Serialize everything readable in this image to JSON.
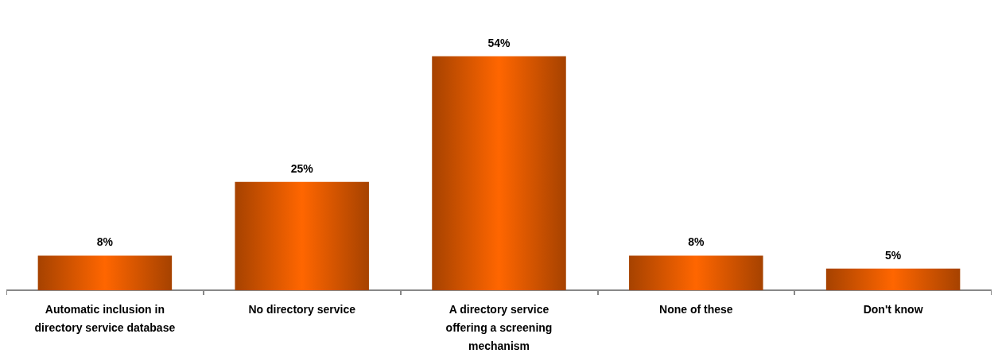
{
  "chart_data": {
    "type": "bar",
    "categories": [
      "Automatic inclusion in\ndirectory service database",
      "No directory service",
      "A directory service\noffering a screening\nmechanism",
      "None of these",
      "Don't know"
    ],
    "values": [
      8,
      25,
      54,
      8,
      5
    ],
    "value_labels": [
      "8%",
      "25%",
      "54%",
      "8%",
      "5%"
    ],
    "color": "#ff6600"
  }
}
